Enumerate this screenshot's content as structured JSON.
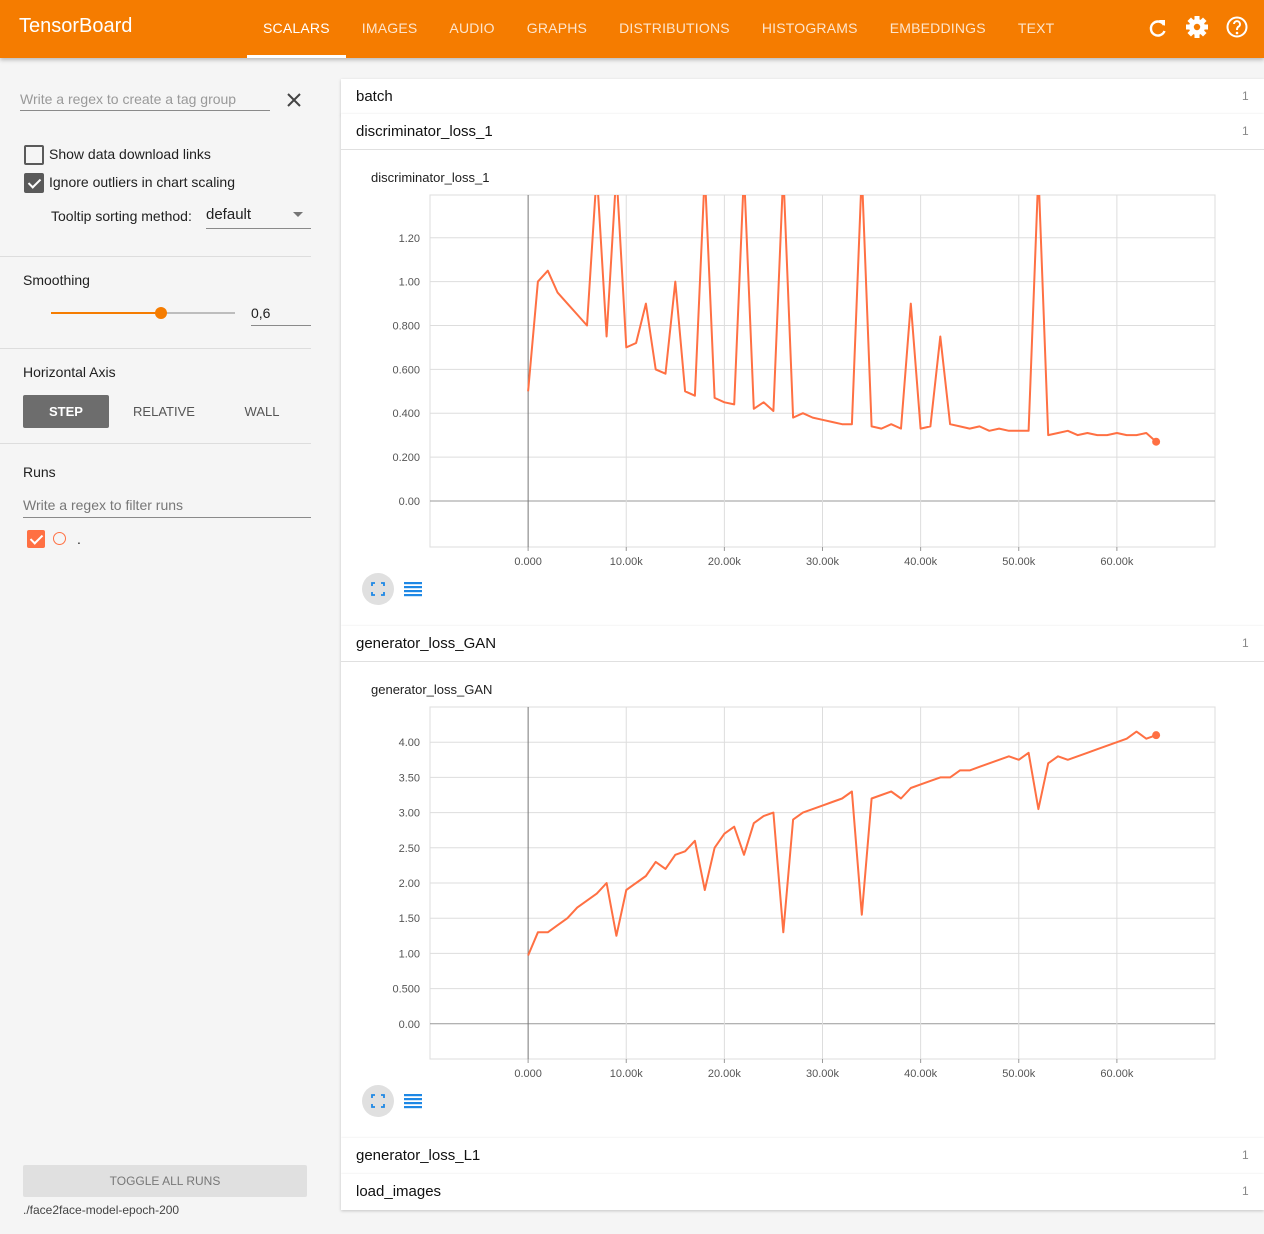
{
  "header": {
    "title": "TensorBoard",
    "tabs": [
      "SCALARS",
      "IMAGES",
      "AUDIO",
      "GRAPHS",
      "DISTRIBUTIONS",
      "HISTOGRAMS",
      "EMBEDDINGS",
      "TEXT"
    ],
    "active_tab": 0
  },
  "sidebar": {
    "tag_filter_placeholder": "Write a regex to create a tag group",
    "options": [
      {
        "label": "Show data download links",
        "checked": false
      },
      {
        "label": "Ignore outliers in chart scaling",
        "checked": true
      }
    ],
    "tooltip_label": "Tooltip sorting method:",
    "tooltip_value": "default",
    "smoothing_label": "Smoothing",
    "smoothing_value": "0,6",
    "horizontal_axis_label": "Horizontal Axis",
    "axis_options": [
      "STEP",
      "RELATIVE",
      "WALL"
    ],
    "axis_selected": 0,
    "runs_label": "Runs",
    "runs_filter_placeholder": "Write a regex to filter runs",
    "runs": [
      {
        "name": ".",
        "color": "#ff7043",
        "checked": true
      }
    ],
    "toggle_all": "TOGGLE ALL RUNS",
    "logdir": "./face2face-model-epoch-200"
  },
  "sections": [
    {
      "name": "batch",
      "count": 1
    },
    {
      "name": "discriminator_loss_1",
      "count": 1
    },
    {
      "name": "generator_loss_GAN",
      "count": 1
    },
    {
      "name": "generator_loss_L1",
      "count": 1
    },
    {
      "name": "load_images",
      "count": 1
    }
  ],
  "chart_data": [
    {
      "type": "line",
      "title": "discriminator_loss_1",
      "x": [
        0,
        1000,
        2000,
        3000,
        4000,
        5000,
        6000,
        7000,
        8000,
        9000,
        10000,
        11000,
        12000,
        13000,
        14000,
        15000,
        16000,
        17000,
        18000,
        19000,
        20000,
        21000,
        22000,
        23000,
        24000,
        25000,
        26000,
        27000,
        28000,
        29000,
        30000,
        31000,
        32000,
        33000,
        34000,
        35000,
        36000,
        37000,
        38000,
        39000,
        40000,
        41000,
        42000,
        43000,
        44000,
        45000,
        46000,
        47000,
        48000,
        49000,
        50000,
        51000,
        52000,
        53000,
        54000,
        55000,
        56000,
        57000,
        58000,
        59000,
        60000,
        61000,
        62000,
        63000,
        64000
      ],
      "series": [
        {
          "name": ".",
          "color": "#ff7043",
          "values": [
            0.5,
            1.0,
            1.05,
            0.95,
            0.9,
            0.85,
            0.8,
            1.5,
            0.75,
            1.5,
            0.7,
            0.72,
            0.9,
            0.6,
            0.58,
            1.0,
            0.5,
            0.48,
            1.5,
            0.47,
            0.45,
            0.44,
            1.5,
            0.42,
            0.45,
            0.41,
            1.5,
            0.38,
            0.4,
            0.38,
            0.37,
            0.36,
            0.35,
            0.35,
            1.5,
            0.34,
            0.33,
            0.35,
            0.33,
            0.9,
            0.33,
            0.34,
            0.75,
            0.35,
            0.34,
            0.33,
            0.34,
            0.32,
            0.33,
            0.32,
            0.32,
            0.32,
            1.5,
            0.3,
            0.31,
            0.32,
            0.3,
            0.31,
            0.3,
            0.3,
            0.31,
            0.3,
            0.3,
            0.31,
            0.27
          ]
        }
      ],
      "xlim": [
        -10000,
        70000
      ],
      "ylim": [
        -0.21,
        1.395
      ],
      "xticks": [
        {
          "value": 0,
          "label": "0.000"
        },
        {
          "value": 10000,
          "label": "10.00k"
        },
        {
          "value": 20000,
          "label": "20.00k"
        },
        {
          "value": 30000,
          "label": "30.00k"
        },
        {
          "value": 40000,
          "label": "40.00k"
        },
        {
          "value": 50000,
          "label": "50.00k"
        },
        {
          "value": 60000,
          "label": "60.00k"
        }
      ],
      "yticks": [
        {
          "value": 0,
          "label": "0.00"
        },
        {
          "value": 0.2,
          "label": "0.200"
        },
        {
          "value": 0.4,
          "label": "0.400"
        },
        {
          "value": 0.6,
          "label": "0.600"
        },
        {
          "value": 0.8,
          "label": "0.800"
        },
        {
          "value": 1.0,
          "label": "1.00"
        },
        {
          "value": 1.2,
          "label": "1.20"
        }
      ],
      "grid": true
    },
    {
      "type": "line",
      "title": "generator_loss_GAN",
      "x": [
        0,
        1000,
        2000,
        3000,
        4000,
        5000,
        6000,
        7000,
        8000,
        9000,
        10000,
        11000,
        12000,
        13000,
        14000,
        15000,
        16000,
        17000,
        18000,
        19000,
        20000,
        21000,
        22000,
        23000,
        24000,
        25000,
        26000,
        27000,
        28000,
        29000,
        30000,
        31000,
        32000,
        33000,
        34000,
        35000,
        36000,
        37000,
        38000,
        39000,
        40000,
        41000,
        42000,
        43000,
        44000,
        45000,
        46000,
        47000,
        48000,
        49000,
        50000,
        51000,
        52000,
        53000,
        54000,
        55000,
        56000,
        57000,
        58000,
        59000,
        60000,
        61000,
        62000,
        63000,
        64000
      ],
      "series": [
        {
          "name": ".",
          "color": "#ff7043",
          "values": [
            0.97,
            1.3,
            1.3,
            1.4,
            1.5,
            1.65,
            1.75,
            1.85,
            2.0,
            1.25,
            1.9,
            2.0,
            2.1,
            2.3,
            2.2,
            2.4,
            2.45,
            2.6,
            1.9,
            2.5,
            2.7,
            2.8,
            2.4,
            2.85,
            2.95,
            3.0,
            1.3,
            2.9,
            3.0,
            3.05,
            3.1,
            3.15,
            3.2,
            3.3,
            1.55,
            3.2,
            3.25,
            3.3,
            3.2,
            3.35,
            3.4,
            3.45,
            3.5,
            3.5,
            3.6,
            3.6,
            3.65,
            3.7,
            3.75,
            3.8,
            3.75,
            3.85,
            3.05,
            3.7,
            3.8,
            3.75,
            3.8,
            3.85,
            3.9,
            3.95,
            4.0,
            4.05,
            4.15,
            4.05,
            4.1
          ]
        }
      ],
      "xlim": [
        -10000,
        70000
      ],
      "ylim": [
        -0.5,
        4.5
      ],
      "xticks": [
        {
          "value": 0,
          "label": "0.000"
        },
        {
          "value": 10000,
          "label": "10.00k"
        },
        {
          "value": 20000,
          "label": "20.00k"
        },
        {
          "value": 30000,
          "label": "30.00k"
        },
        {
          "value": 40000,
          "label": "40.00k"
        },
        {
          "value": 50000,
          "label": "50.00k"
        },
        {
          "value": 60000,
          "label": "60.00k"
        }
      ],
      "yticks": [
        {
          "value": 0,
          "label": "0.00"
        },
        {
          "value": 0.5,
          "label": "0.500"
        },
        {
          "value": 1.0,
          "label": "1.00"
        },
        {
          "value": 1.5,
          "label": "1.50"
        },
        {
          "value": 2.0,
          "label": "2.00"
        },
        {
          "value": 2.5,
          "label": "2.50"
        },
        {
          "value": 3.0,
          "label": "3.00"
        },
        {
          "value": 3.5,
          "label": "3.50"
        },
        {
          "value": 4.0,
          "label": "4.00"
        }
      ],
      "grid": true
    }
  ]
}
